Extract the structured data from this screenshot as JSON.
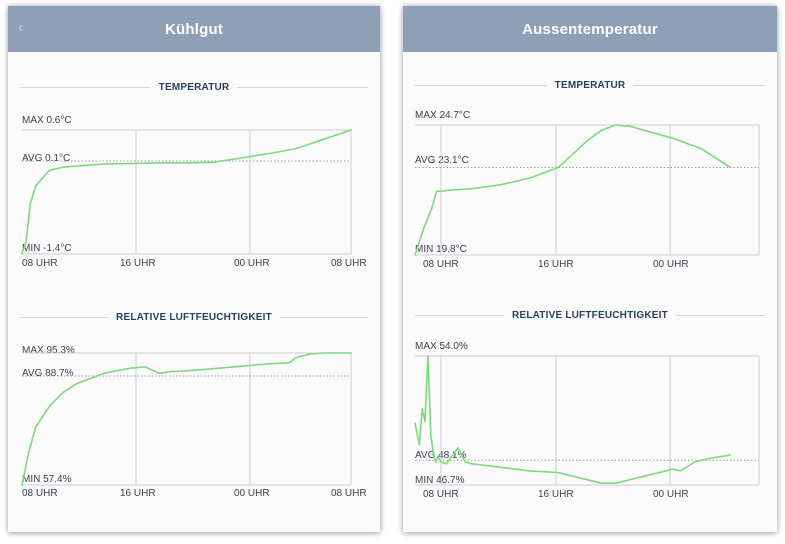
{
  "panels": [
    {
      "title": "Kühlgut",
      "temperature": {
        "section_title": "TEMPERATUR",
        "max_label": "MAX 0.6°C",
        "avg_label": "AVG 0.1°C",
        "min_label": "MIN -1.4°C",
        "x_ticks": [
          "08 UHR",
          "16 UHR",
          "00 UHR",
          "08 UHR"
        ]
      },
      "humidity": {
        "section_title": "RELATIVE LUFTFEUCHTIGKEIT",
        "max_label": "MAX 95.3%",
        "avg_label": "AVG 88.7%",
        "min_label": "MIN 57.4%",
        "x_ticks": [
          "08 UHR",
          "16 UHR",
          "00 UHR",
          "08 UHR"
        ]
      }
    },
    {
      "title": "Aussentemperatur",
      "temperature": {
        "section_title": "TEMPERATUR",
        "max_label": "MAX 24.7°C",
        "avg_label": "AVG 23.1°C",
        "min_label": "MIN 19.8°C",
        "x_ticks": [
          "08 UHR",
          "16 UHR",
          "00 UHR"
        ]
      },
      "humidity": {
        "section_title": "RELATIVE LUFTFEUCHTIGKEIT",
        "max_label": "MAX 54.0%",
        "avg_label": "AVG 48.1%",
        "min_label": "MIN 46.7%",
        "x_ticks": [
          "08 UHR",
          "16 UHR",
          "00 UHR"
        ]
      }
    }
  ],
  "colors": {
    "header_bg": "#8ea0b8",
    "line": "#7ed97a",
    "grid": "#c8ccd4",
    "avg_dotted": "#9aa0a8",
    "section_text": "#2e3f5c"
  },
  "chart_data": [
    {
      "type": "line",
      "title": "TEMPERATUR",
      "unit": "°C",
      "max": 0.6,
      "avg": 0.1,
      "min": -1.4,
      "ylim": [
        -1.4,
        0.6
      ],
      "x_ticks": [
        "08 UHR",
        "16 UHR",
        "00 UHR",
        "08 UHR"
      ],
      "x": [
        0,
        0.3,
        0.6,
        1,
        2,
        3,
        4,
        6,
        8,
        10,
        12,
        14,
        16,
        18,
        20,
        22,
        24
      ],
      "values": [
        -1.4,
        -1.2,
        -0.6,
        -0.3,
        -0.05,
        0.0,
        0.02,
        0.05,
        0.06,
        0.07,
        0.07,
        0.08,
        0.15,
        0.22,
        0.3,
        0.45,
        0.6
      ]
    },
    {
      "type": "line",
      "title": "RELATIVE LUFTFEUCHTIGKEIT",
      "unit": "%",
      "max": 95.3,
      "avg": 88.7,
      "min": 57.4,
      "ylim": [
        57.4,
        95.3
      ],
      "x_ticks": [
        "08 UHR",
        "16 UHR",
        "00 UHR",
        "08 UHR"
      ],
      "x": [
        0,
        0.5,
        1,
        2,
        3,
        4,
        6,
        8,
        9,
        10,
        11,
        12,
        14,
        16,
        18,
        19.5,
        20,
        21,
        22,
        23,
        24
      ],
      "values": [
        57.4,
        67,
        74,
        80,
        84,
        86.5,
        89.5,
        91,
        91.3,
        89.5,
        90,
        90.2,
        90.8,
        91.5,
        92.2,
        92.5,
        94,
        95,
        95.3,
        95.3,
        95.3
      ]
    },
    {
      "type": "line",
      "title": "TEMPERATUR",
      "unit": "°C",
      "max": 24.7,
      "avg": 23.1,
      "min": 19.8,
      "ylim": [
        19.8,
        24.7
      ],
      "x_ticks": [
        "08 UHR",
        "16 UHR",
        "00 UHR"
      ],
      "x": [
        0,
        0.3,
        0.6,
        0.9,
        1.2,
        1.5,
        1.8,
        2.5,
        4,
        6,
        8,
        10,
        11,
        12,
        13,
        14,
        15,
        16,
        18,
        20,
        22
      ],
      "values": [
        19.8,
        20.3,
        20.8,
        21.2,
        21.6,
        22.2,
        22.2,
        22.25,
        22.3,
        22.45,
        22.7,
        23.1,
        23.6,
        24.1,
        24.5,
        24.7,
        24.65,
        24.5,
        24.2,
        23.8,
        23.1
      ]
    },
    {
      "type": "line",
      "title": "RELATIVE LUFTFEUCHTIGKEIT",
      "unit": "%",
      "max": 54.0,
      "avg": 48.1,
      "min": 46.7,
      "ylim": [
        46.7,
        54.0
      ],
      "x_ticks": [
        "08 UHR",
        "16 UHR",
        "00 UHR"
      ],
      "x": [
        0,
        0.3,
        0.5,
        0.7,
        0.9,
        1.1,
        1.3,
        1.45,
        1.6,
        1.8,
        2.2,
        3,
        3.5,
        4,
        6,
        8,
        10,
        12,
        13,
        14,
        16,
        18,
        18.5,
        19.5,
        20.5,
        22
      ],
      "values": [
        50.2,
        49.0,
        51.0,
        50.3,
        54.0,
        49.5,
        48.4,
        48.0,
        48.3,
        48.0,
        47.9,
        48.8,
        48.0,
        47.9,
        47.7,
        47.5,
        47.4,
        47.0,
        46.8,
        46.8,
        47.2,
        47.6,
        47.5,
        48.0,
        48.2,
        48.4
      ]
    }
  ]
}
